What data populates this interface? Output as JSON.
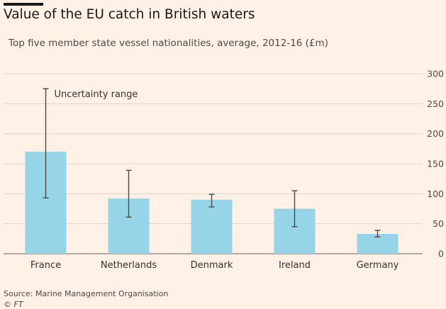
{
  "header": {
    "title": "Value of the EU catch in British waters",
    "subtitle": "Top five member state vessel nationalities, average, 2012-16 (£m)"
  },
  "footer": {
    "source": "Source: Marine Management Organisation",
    "credit": "© FT"
  },
  "colors": {
    "background": "#FFF1E5",
    "bar": "#96D4E8",
    "error_bar": "#4D4845",
    "grid": "#E0D5CB",
    "axis": "#66605C"
  },
  "chart_data": {
    "type": "bar",
    "categories": [
      "France",
      "Netherlands",
      "Denmark",
      "Ireland",
      "Germany"
    ],
    "values": [
      170,
      92,
      90,
      75,
      33
    ],
    "error_low": [
      93,
      61,
      78,
      45,
      28
    ],
    "error_high": [
      275,
      139,
      99,
      105,
      39
    ],
    "annotation": "Uncertainty range",
    "ylim": [
      0,
      300
    ],
    "yticks": [
      0,
      50,
      100,
      150,
      200,
      250,
      300
    ],
    "ytick_side": "right",
    "grid": true
  }
}
